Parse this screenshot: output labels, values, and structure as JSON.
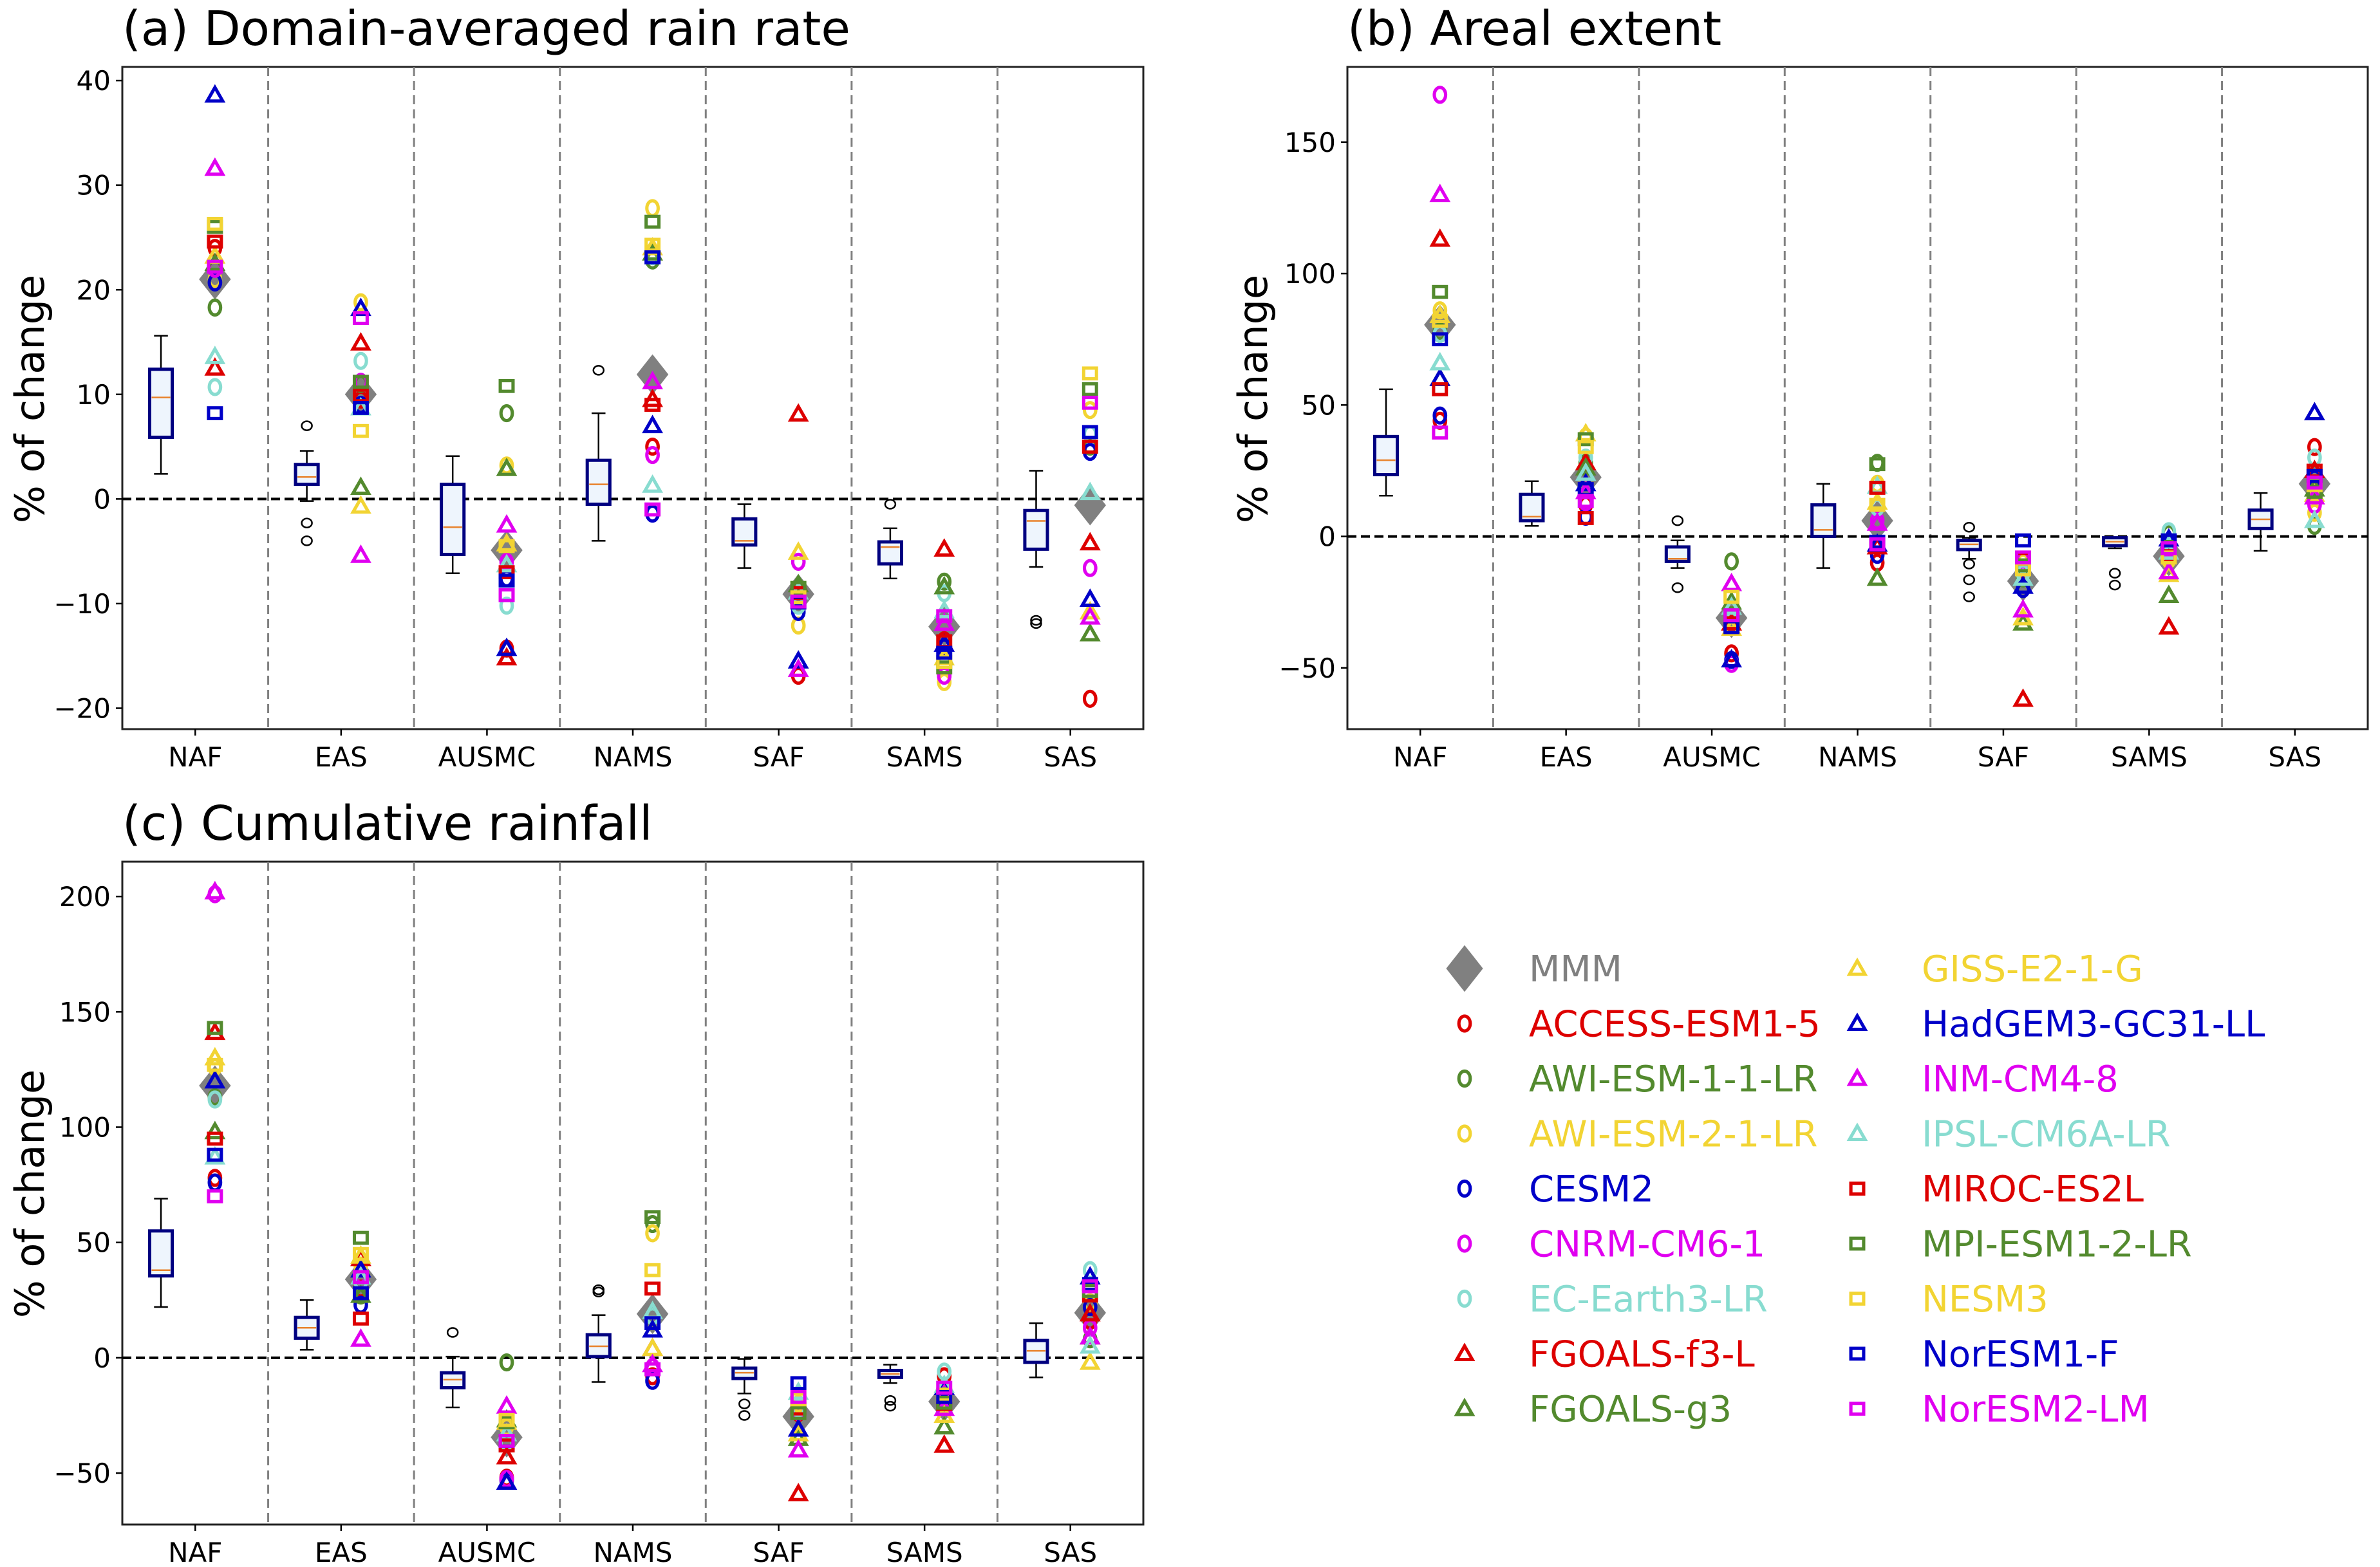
{
  "figure": {
    "legend": {
      "placement": "bottom-right",
      "entries": [
        {
          "name": "MMM",
          "marker": "diamond-filled",
          "color": "#808080"
        },
        {
          "name": "ACCESS-ESM1-5",
          "marker": "circle",
          "color": "#dd0000"
        },
        {
          "name": "AWI-ESM-1-1-LR",
          "marker": "circle",
          "color": "#538a2e"
        },
        {
          "name": "AWI-ESM-2-1-LR",
          "marker": "circle",
          "color": "#f2d433"
        },
        {
          "name": "CESM2",
          "marker": "circle",
          "color": "#0000c8"
        },
        {
          "name": "CNRM-CM6-1",
          "marker": "circle",
          "color": "#e000f0"
        },
        {
          "name": "EC-Earth3-LR",
          "marker": "circle",
          "color": "#88dcd0"
        },
        {
          "name": "FGOALS-f3-L",
          "marker": "triangle",
          "color": "#dd0000"
        },
        {
          "name": "FGOALS-g3",
          "marker": "triangle",
          "color": "#538a2e"
        },
        {
          "name": "GISS-E2-1-G",
          "marker": "triangle",
          "color": "#f2d433"
        },
        {
          "name": "HadGEM3-GC31-LL",
          "marker": "triangle",
          "color": "#0000c8"
        },
        {
          "name": "INM-CM4-8",
          "marker": "triangle",
          "color": "#e000f0"
        },
        {
          "name": "IPSL-CM6A-LR",
          "marker": "triangle",
          "color": "#88dcd0"
        },
        {
          "name": "MIROC-ES2L",
          "marker": "square",
          "color": "#dd0000"
        },
        {
          "name": "MPI-ESM1-2-LR",
          "marker": "square",
          "color": "#538a2e"
        },
        {
          "name": "NESM3",
          "marker": "square",
          "color": "#f2d433"
        },
        {
          "name": "NorESM1-F",
          "marker": "square",
          "color": "#0000c8"
        },
        {
          "name": "NorESM2-LM",
          "marker": "square",
          "color": "#e000f0"
        }
      ]
    }
  },
  "chart_data": [
    {
      "id": "a",
      "type": "box+scatter",
      "title": "(a) Domain-averaged rain rate",
      "xlabel": "",
      "ylabel": "% of change",
      "ylim": [
        -22,
        41.3
      ],
      "yticks": [
        -20,
        -10,
        0,
        10,
        20,
        30,
        40
      ],
      "ytick_labels": [
        "−20",
        "−10",
        "0",
        "10",
        "20",
        "30",
        "40"
      ],
      "categories": [
        "NAF",
        "EAS",
        "AUSMC",
        "NAMS",
        "SAF",
        "SAMS",
        "SAS"
      ],
      "grid": false,
      "zero_line": true,
      "boxes": [
        {
          "whislo": 2.4,
          "q1": 5.9,
          "med": 9.7,
          "q3": 12.4,
          "whishi": 15.6,
          "fliers": []
        },
        {
          "whislo": -0.2,
          "q1": 1.4,
          "med": 2.1,
          "q3": 3.3,
          "whishi": 4.6,
          "fliers": [
            7.0,
            -2.3,
            -4.0
          ]
        },
        {
          "whislo": -7.1,
          "q1": -5.3,
          "med": -2.7,
          "q3": 1.4,
          "whishi": 4.1,
          "fliers": []
        },
        {
          "whislo": -4.0,
          "q1": -0.5,
          "med": 1.4,
          "q3": 3.7,
          "whishi": 8.2,
          "fliers": [
            12.3
          ]
        },
        {
          "whislo": -6.6,
          "q1": -4.4,
          "med": -4.0,
          "q3": -1.9,
          "whishi": -0.5,
          "fliers": []
        },
        {
          "whislo": -7.6,
          "q1": -6.2,
          "med": -4.6,
          "q3": -4.1,
          "whishi": -2.8,
          "fliers": [
            -0.5
          ]
        },
        {
          "whislo": -6.5,
          "q1": -4.8,
          "med": -2.1,
          "q3": -1.1,
          "whishi": 2.7,
          "fliers": [
            -11.6,
            -11.9
          ]
        }
      ],
      "series": {
        "MMM": [
          21.0,
          10.0,
          -4.9,
          11.9,
          -9.1,
          -12.2,
          -0.6
        ],
        "ACCESS-ESM1-5": [
          24.0,
          9.5,
          -14.3,
          5.0,
          -16.9,
          -13.5,
          -19.1
        ],
        "AWI-ESM-1-1-LR": [
          18.3,
          11.0,
          8.2,
          22.8,
          -8.5,
          -7.9,
          5.0
        ],
        "AWI-ESM-2-1-LR": [
          21.0,
          18.8,
          3.2,
          27.8,
          -12.1,
          -17.5,
          8.5
        ],
        "CESM2": [
          20.7,
          9.0,
          -7.6,
          -1.4,
          -10.8,
          -14.2,
          4.5
        ],
        "CNRM-CM6-1": [
          22.0,
          11.2,
          -6.0,
          4.2,
          -6.0,
          -16.9,
          -6.6
        ],
        "EC-Earth3-LR": [
          10.7,
          13.2,
          -10.2,
          23.2,
          -10.2,
          -9.0,
          6.2
        ],
        "FGOALS-f3-L": [
          12.5,
          14.9,
          -15.2,
          9.5,
          8.1,
          -4.8,
          -4.2
        ],
        "FGOALS-g3": [
          22.5,
          1.1,
          2.9,
          23.5,
          -8.2,
          -8.4,
          -12.9
        ],
        "GISS-E2-1-G": [
          23.2,
          -0.7,
          -4.3,
          24.0,
          -5.1,
          -15.2,
          -10.8
        ],
        "HadGEM3-GC31-LL": [
          38.6,
          18.2,
          -14.3,
          7.0,
          -15.5,
          -13.9,
          -9.6
        ],
        "INM-CM4-8": [
          31.6,
          -5.4,
          -2.5,
          11.2,
          -16.3,
          -11.9,
          -11.3
        ],
        "IPSL-CM6A-LR": [
          13.6,
          8.7,
          -6.3,
          1.3,
          -8.9,
          -10.7,
          0.6
        ],
        "MIROC-ES2L": [
          24.6,
          9.9,
          -7.0,
          9.0,
          -9.0,
          -13.6,
          5.0
        ],
        "MPI-ESM1-2-LR": [
          26.0,
          11.2,
          10.8,
          26.5,
          -8.5,
          -16.1,
          10.5
        ],
        "NESM3": [
          26.3,
          6.5,
          -4.5,
          24.3,
          -9.4,
          -15.6,
          12.0
        ],
        "NorESM1-F": [
          8.2,
          8.7,
          -7.8,
          23.1,
          -9.9,
          -14.7,
          6.4
        ],
        "NorESM2-LM": [
          22.2,
          17.3,
          -9.2,
          -1.0,
          -9.8,
          -11.2,
          9.2
        ]
      }
    },
    {
      "id": "b",
      "type": "box+scatter",
      "title": "(b) Areal extent",
      "xlabel": "",
      "ylabel": "% of change",
      "ylim": [
        -73.3,
        178.6
      ],
      "yticks": [
        -50,
        0,
        50,
        100,
        150
      ],
      "ytick_labels": [
        "−50",
        "0",
        "50",
        "100",
        "150"
      ],
      "categories": [
        "NAF",
        "EAS",
        "AUSMC",
        "NAMS",
        "SAF",
        "SAMS",
        "SAS"
      ],
      "grid": false,
      "zero_line": true,
      "boxes": [
        {
          "whislo": 15.5,
          "q1": 23.5,
          "med": 29.0,
          "q3": 38.0,
          "whishi": 56.0,
          "fliers": []
        },
        {
          "whislo": 4.0,
          "q1": 6.0,
          "med": 7.5,
          "q3": 16.0,
          "whishi": 21.0,
          "fliers": []
        },
        {
          "whislo": -12.0,
          "q1": -9.5,
          "med": -8.5,
          "q3": -4.0,
          "whishi": -1.5,
          "fliers": [
            6.0,
            -19.5
          ]
        },
        {
          "whislo": -12.0,
          "q1": 0.0,
          "med": 2.5,
          "q3": 12.0,
          "whishi": 20.0,
          "fliers": []
        },
        {
          "whislo": -8.5,
          "q1": -5.0,
          "med": -3.0,
          "q3": -1.5,
          "whishi": -0.5,
          "fliers": [
            3.5,
            -10.5,
            -16.5,
            -23.0
          ]
        },
        {
          "whislo": -4.5,
          "q1": -3.5,
          "med": -2.0,
          "q3": -0.5,
          "whishi": -0.5,
          "fliers": [
            -14.0,
            -18.5
          ]
        },
        {
          "whislo": -5.5,
          "q1": 3.0,
          "med": 6.5,
          "q3": 10.0,
          "whishi": 16.5,
          "fliers": []
        }
      ],
      "series": {
        "MMM": [
          80.5,
          22.5,
          -31.0,
          6.0,
          -17.0,
          -7.5,
          20.0
        ],
        "ACCESS-ESM1-5": [
          44.0,
          12.0,
          -44.5,
          -10.0,
          -13.0,
          -4.0,
          34.0
        ],
        "AWI-ESM-1-1-LR": [
          78.0,
          28.0,
          -9.5,
          28.0,
          -16.0,
          1.0,
          4.0
        ],
        "AWI-ESM-2-1-LR": [
          86.0,
          38.0,
          -32.0,
          20.0,
          -10.0,
          -9.0,
          9.0
        ],
        "CESM2": [
          46.0,
          7.5,
          -47.0,
          -7.0,
          -20.0,
          -3.0,
          22.0
        ],
        "CNRM-CM6-1": [
          168.0,
          13.0,
          -48.5,
          6.0,
          -9.0,
          -5.0,
          12.0
        ],
        "EC-Earth3-LR": [
          77.0,
          30.0,
          -28.0,
          11.0,
          -14.0,
          2.0,
          30.0
        ],
        "FGOALS-f3-L": [
          113.0,
          28.0,
          -33.0,
          -4.0,
          -62.0,
          -34.5,
          25.0
        ],
        "FGOALS-g3": [
          60.0,
          26.0,
          -25.0,
          -16.0,
          -33.0,
          -22.5,
          18.0
        ],
        "GISS-E2-1-G": [
          84.0,
          39.0,
          -35.0,
          13.0,
          -31.0,
          -14.5,
          16.0
        ],
        "HadGEM3-GC31-LL": [
          60.0,
          20.0,
          -47.0,
          -3.0,
          -19.0,
          -1.0,
          47.0
        ],
        "INM-CM4-8": [
          130.0,
          17.0,
          -18.0,
          5.0,
          -28.0,
          -13.5,
          15.0
        ],
        "IPSL-CM6A-LR": [
          66.0,
          24.0,
          -27.0,
          19.0,
          -16.0,
          -6.0,
          6.0
        ],
        "MIROC-ES2L": [
          56.0,
          7.0,
          -33.0,
          18.5,
          -8.5,
          -7.5,
          25.0
        ],
        "MPI-ESM1-2-LR": [
          93.0,
          37.0,
          -30.0,
          27.5,
          -11.0,
          -4.0,
          17.0
        ],
        "NESM3": [
          82.0,
          34.0,
          -23.0,
          12.0,
          -12.5,
          -8.0,
          19.5
        ],
        "NorESM1-F": [
          75.0,
          18.0,
          -34.5,
          -2.0,
          -1.5,
          -1.5,
          23.0
        ],
        "NorESM2-LM": [
          39.5,
          13.5,
          -30.0,
          -3.0,
          -8.0,
          -4.5,
          20.5
        ]
      }
    },
    {
      "id": "c",
      "type": "box+scatter",
      "title": "(c) Cumulative rainfall",
      "xlabel": "",
      "ylabel": "% of change",
      "ylim": [
        -72.3,
        215.1
      ],
      "yticks": [
        -50,
        0,
        50,
        100,
        150,
        200
      ],
      "ytick_labels": [
        "−50",
        "0",
        "50",
        "100",
        "150",
        "200"
      ],
      "categories": [
        "NAF",
        "EAS",
        "AUSMC",
        "NAMS",
        "SAF",
        "SAMS",
        "SAS"
      ],
      "grid": false,
      "zero_line": true,
      "boxes": [
        {
          "whislo": 22.0,
          "q1": 35.5,
          "med": 38.0,
          "q3": 55.0,
          "whishi": 69.0,
          "fliers": []
        },
        {
          "whislo": 3.5,
          "q1": 8.5,
          "med": 13.0,
          "q3": 17.5,
          "whishi": 25.0,
          "fliers": []
        },
        {
          "whislo": -21.5,
          "q1": -13.0,
          "med": -9.5,
          "q3": -6.5,
          "whishi": 0.5,
          "fliers": [
            11.0
          ]
        },
        {
          "whislo": -10.5,
          "q1": 0.5,
          "med": 5.0,
          "q3": 10.0,
          "whishi": 18.5,
          "fliers": [
            28.5,
            29.5
          ]
        },
        {
          "whislo": -15.5,
          "q1": -9.0,
          "med": -6.5,
          "q3": -4.5,
          "whishi": -0.5,
          "fliers": [
            -20.0,
            -25.0
          ]
        },
        {
          "whislo": -11.0,
          "q1": -8.5,
          "med": -7.0,
          "q3": -5.5,
          "whishi": -3.0,
          "fliers": [
            -18.5,
            -21.0
          ]
        },
        {
          "whislo": -8.5,
          "q1": -2.0,
          "med": 3.0,
          "q3": 7.5,
          "whishi": 15.0,
          "fliers": []
        }
      ],
      "series": {
        "MMM": [
          118.0,
          34.0,
          -34.5,
          19.0,
          -25.5,
          -19.0,
          19.5
        ],
        "ACCESS-ESM1-5": [
          78.0,
          30.0,
          -52.0,
          -8.0,
          -24.0,
          -8.0,
          16.0
        ],
        "AWI-ESM-1-1-LR": [
          113.0,
          27.0,
          -2.0,
          58.0,
          -23.0,
          -17.0,
          8.0
        ],
        "AWI-ESM-2-1-LR": [
          126.0,
          40.0,
          -30.0,
          54.0,
          -20.0,
          -21.0,
          24.0
        ],
        "CESM2": [
          76.0,
          23.0,
          -53.0,
          -10.0,
          -22.0,
          -19.0,
          22.0
        ],
        "CNRM-CM6-1": [
          201.0,
          36.0,
          -52.5,
          -4.0,
          -23.5,
          -15.0,
          13.0
        ],
        "EC-Earth3-LR": [
          112.0,
          33.0,
          -37.0,
          18.0,
          -22.0,
          -6.0,
          38.0
        ],
        "FGOALS-f3-L": [
          141.0,
          43.0,
          -43.0,
          4.0,
          -59.0,
          -38.0,
          19.0
        ],
        "FGOALS-g3": [
          98.0,
          27.0,
          -27.0,
          20.0,
          -35.0,
          -30.0,
          9.0
        ],
        "GISS-E2-1-G": [
          130.0,
          44.0,
          -28.0,
          4.0,
          -33.0,
          -25.0,
          -2.0
        ],
        "HadGEM3-GC31-LL": [
          120.0,
          38.0,
          -54.0,
          12.0,
          -31.0,
          -13.0,
          35.0
        ],
        "INM-CM4-8": [
          202.0,
          8.0,
          -21.0,
          -3.0,
          -40.0,
          -22.0,
          9.0
        ],
        "IPSL-CM6A-LR": [
          87.0,
          35.0,
          -33.0,
          20.0,
          -15.0,
          -12.0,
          5.0
        ],
        "MIROC-ES2L": [
          95.0,
          17.0,
          -38.0,
          30.0,
          -22.0,
          -20.0,
          27.0
        ],
        "MPI-ESM1-2-LR": [
          143.0,
          52.0,
          -28.0,
          61.0,
          -24.0,
          -19.5,
          29.0
        ],
        "NESM3": [
          127.0,
          45.0,
          -27.0,
          38.0,
          -18.0,
          -16.0,
          31.0
        ],
        "NorESM1-F": [
          88.0,
          28.0,
          -36.0,
          15.0,
          -11.0,
          -17.0,
          32.0
        ],
        "NorESM2-LM": [
          70.0,
          35.0,
          -36.0,
          -5.0,
          -17.0,
          -13.0,
          31.0
        ]
      }
    }
  ]
}
